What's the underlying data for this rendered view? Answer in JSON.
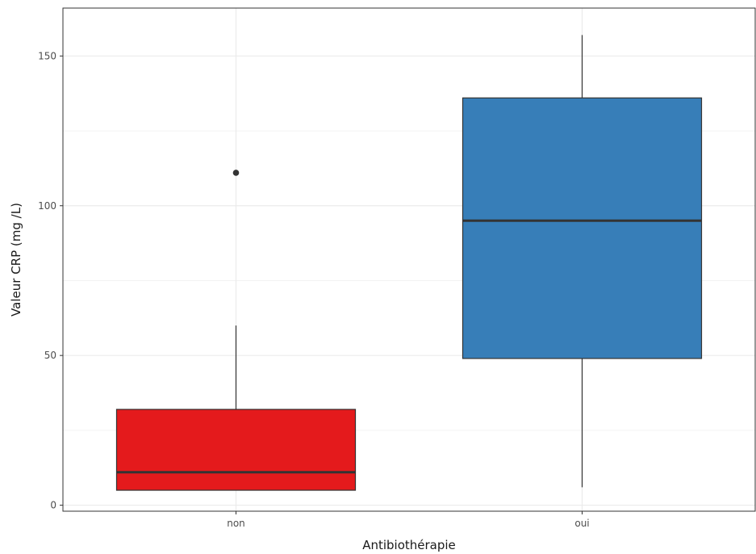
{
  "chart_data": {
    "type": "boxplot",
    "xlabel": "Antibiothérapie",
    "ylabel": "Valeur CRP (mg /L)",
    "ylim": [
      -2,
      166
    ],
    "y_ticks": [
      0,
      50,
      100,
      150
    ],
    "y_minor_ticks": [
      25,
      75,
      125
    ],
    "grid": true,
    "categories": [
      "non",
      "oui"
    ],
    "boxes": [
      {
        "category": "non",
        "whisker_low": 5,
        "q1": 5,
        "median": 11,
        "q3": 32,
        "whisker_high": 60,
        "outliers": [
          111
        ],
        "color": "#E41A1C"
      },
      {
        "category": "oui",
        "whisker_low": 6,
        "q1": 49,
        "median": 95,
        "q3": 136,
        "whisker_high": 157,
        "outliers": [],
        "color": "#377EB8"
      }
    ]
  }
}
